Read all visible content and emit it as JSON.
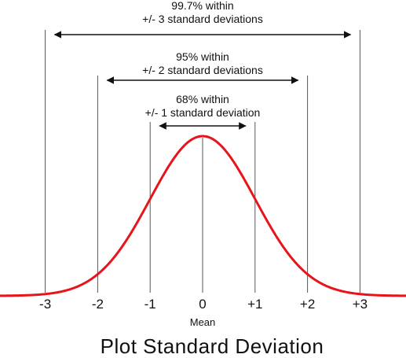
{
  "chart_data": {
    "type": "line",
    "title": "Plot Standard Deviation",
    "xlabel": "Mean",
    "x_ticks": [
      "-3",
      "-2",
      "-1",
      "0",
      "+1",
      "+2",
      "+3"
    ],
    "x_tick_values": [
      -3,
      -2,
      -1,
      0,
      1,
      2,
      3
    ],
    "xlim": [
      -3.9,
      3.9
    ],
    "ylim": [
      0,
      0.4
    ],
    "grid": false,
    "curve": {
      "distribution": "normal",
      "mean": 0,
      "std_dev": 1,
      "color": "#e8141b"
    },
    "bands": [
      {
        "sigma": 1,
        "line1": "68% within",
        "line2": "+/- 1 standard deviation"
      },
      {
        "sigma": 2,
        "line1": "95% within",
        "line2": "+/- 2 standard deviations"
      },
      {
        "sigma": 3,
        "line1": "99.7% within",
        "line2": "+/- 3 standard deviations"
      }
    ],
    "vertical_line_color": "#555555",
    "arrow_color": "#111111"
  }
}
